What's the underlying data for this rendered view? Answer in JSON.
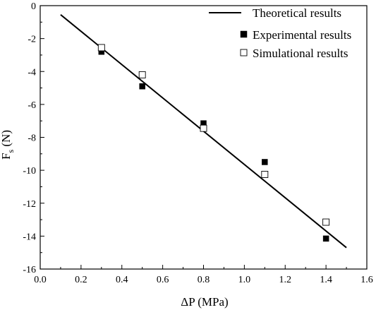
{
  "chart_data": {
    "type": "scatter",
    "xlabel": "ΔP (MPa)",
    "ylabel_main": "F",
    "ylabel_sub": "s",
    "ylabel_unit": " (N)",
    "xlim": [
      0.0,
      1.6
    ],
    "ylim": [
      -16,
      0
    ],
    "x_ticks": [
      0.0,
      0.2,
      0.4,
      0.6,
      0.8,
      1.0,
      1.2,
      1.4,
      1.6
    ],
    "y_ticks": [
      0,
      -2,
      -4,
      -6,
      -8,
      -10,
      -12,
      -14,
      -16
    ],
    "x_tick_labels": [
      "0.0",
      "0.2",
      "0.4",
      "0.6",
      "0.8",
      "1.0",
      "1.2",
      "1.4",
      "1.6"
    ],
    "y_tick_labels": [
      "0",
      "-2",
      "-4",
      "-6",
      "-8",
      "-10",
      "-12",
      "-14",
      "-16"
    ],
    "grid": false,
    "legend_position": "top-right",
    "series": [
      {
        "name": "Theoretical results",
        "type": "line",
        "color": "#000000",
        "x": [
          0.1,
          1.5
        ],
        "y": [
          -0.55,
          -14.7
        ]
      },
      {
        "name": "Experimental results",
        "type": "scatter",
        "marker": "filled-square",
        "color": "#000000",
        "x": [
          0.3,
          0.5,
          0.8,
          1.1,
          1.4
        ],
        "y": [
          -2.8,
          -4.9,
          -7.15,
          -9.5,
          -14.15
        ]
      },
      {
        "name": "Simulational results",
        "type": "scatter",
        "marker": "open-square",
        "color": "#000000",
        "x": [
          0.3,
          0.5,
          0.8,
          1.1,
          1.4
        ],
        "y": [
          -2.55,
          -4.2,
          -7.45,
          -10.25,
          -13.15
        ]
      }
    ]
  }
}
